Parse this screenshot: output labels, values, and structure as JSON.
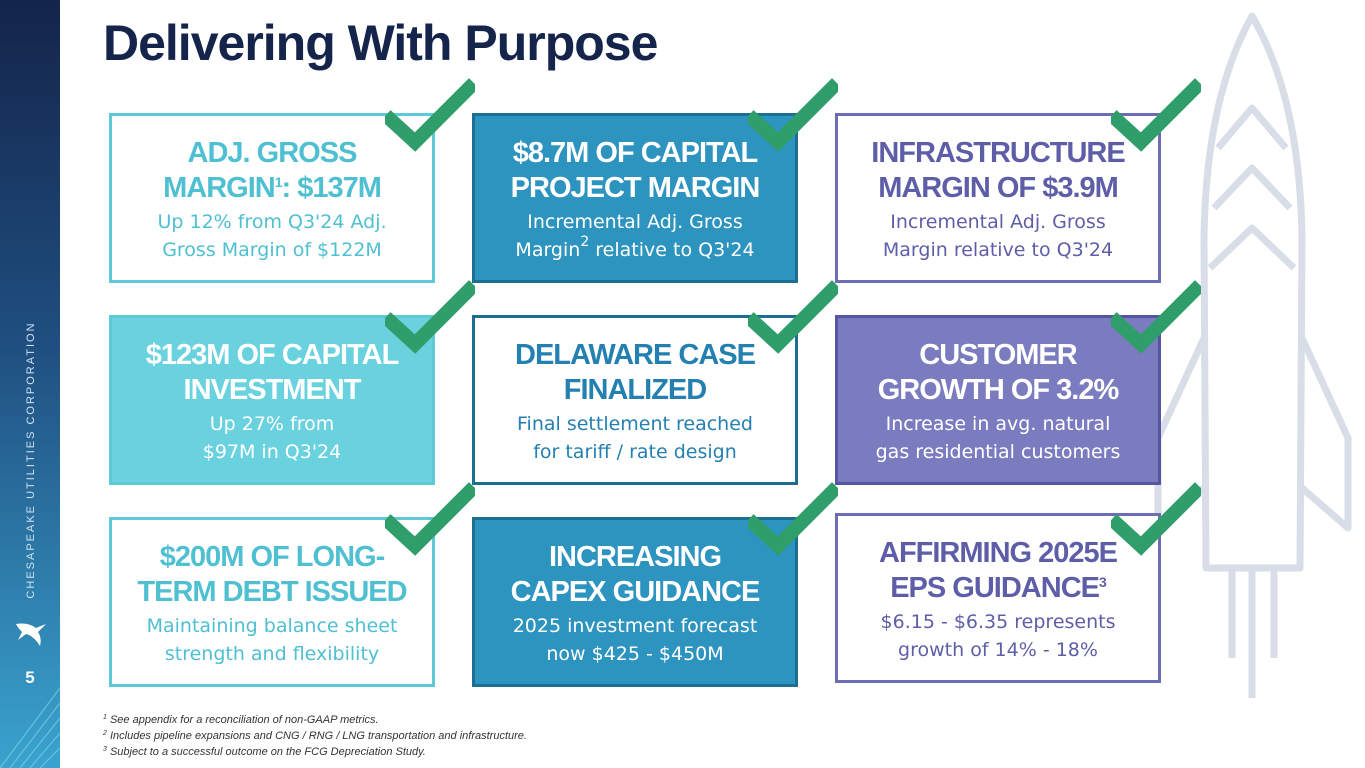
{
  "slide": {
    "title": "Delivering With Purpose",
    "page_number": "5",
    "company_name": "CHESAPEAKE UTILITIES CORPORATION"
  },
  "cards": {
    "gross_margin": {
      "head_pre": "ADJ. GROSS\nMARGIN",
      "head_sup": "1",
      "head_post": ": $137M",
      "sub": "Up 12% from Q3'24 Adj.\nGross Margin of $122M"
    },
    "capital_project": {
      "head": "$8.7M OF CAPITAL\nPROJECT MARGIN",
      "sub_pre": "Incremental Adj. Gross\nMargin",
      "sub_sup": "2",
      "sub_post": " relative to Q3'24"
    },
    "infrastructure": {
      "head": "INFRASTRUCTURE\nMARGIN OF $3.9M",
      "sub": "Incremental Adj. Gross\nMargin relative to Q3'24"
    },
    "capital_investment": {
      "head": "$123M OF CAPITAL\nINVESTMENT",
      "sub": "Up 27% from\n$97M in Q3'24"
    },
    "delaware": {
      "head": "DELAWARE CASE\nFINALIZED",
      "sub": "Final settlement reached\nfor tariff / rate design"
    },
    "customer_growth": {
      "head": "CUSTOMER\nGROWTH OF 3.2%",
      "sub": "Increase in avg. natural\ngas residential customers"
    },
    "long_term_debt": {
      "head": "$200M OF LONG-\nTERM DEBT ISSUED",
      "sub": "Maintaining balance sheet\nstrength and flexibility"
    },
    "capex_guidance": {
      "head": "INCREASING\nCAPEX GUIDANCE",
      "sub": "2025 investment forecast\nnow $425 - $450M"
    },
    "eps_guidance": {
      "head_pre": "AFFIRMING 2025E\nEPS GUIDANCE",
      "head_sup": "3",
      "sub": "$6.15 - $6.35 represents\ngrowth of 14% - 18%"
    }
  },
  "footnotes": [
    {
      "num": "1",
      "text": " See appendix for a reconciliation of non-GAAP metrics."
    },
    {
      "num": "2",
      "text": " Includes pipeline expansions and CNG / RNG / LNG transportation and infrastructure."
    },
    {
      "num": "3",
      "text": " Subject to a successful outcome on the FCG Depreciation Study."
    }
  ],
  "colors": {
    "navy": "#14244a",
    "teal": "#5ecad9",
    "blue": "#2d93bf",
    "purple": "#6d6db4",
    "check_green": "#2f9e6a"
  },
  "icons": {
    "check": "checkmark-icon",
    "logo": "company-logo-icon",
    "rocket": "rocket-watermark-icon"
  }
}
